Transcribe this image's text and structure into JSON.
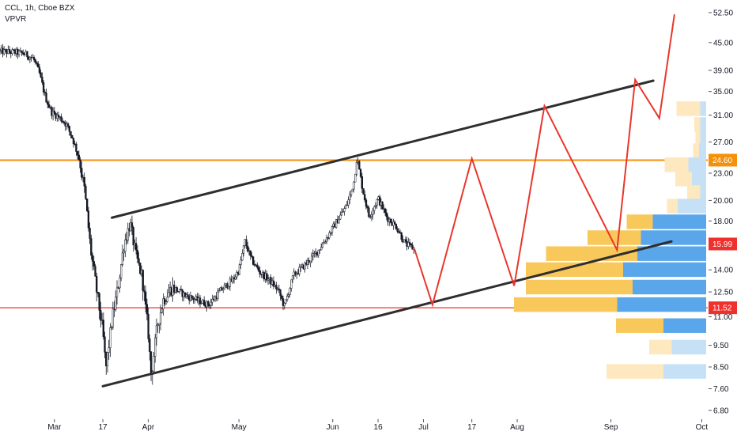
{
  "legend": {
    "symbol_line": "CCL, 1h, Cboe BZX",
    "indicator": "VPVR"
  },
  "chart_data": {
    "type": "candlestick",
    "y_axis": {
      "scale": "log",
      "tick_labels": [
        "52.50",
        "45.00",
        "39.00",
        "35.00",
        "31.00",
        "27.00",
        "24.60",
        "23.00",
        "20.00",
        "18.00",
        "15.99",
        "14.00",
        "12.50",
        "11.52",
        "11.00",
        "9.50",
        "8.50",
        "7.60",
        "6.80"
      ],
      "tick_values": [
        52.5,
        45.0,
        39.0,
        35.0,
        31.0,
        27.0,
        24.6,
        23.0,
        20.0,
        18.0,
        15.99,
        14.0,
        12.5,
        11.52,
        11.0,
        9.5,
        8.5,
        7.6,
        6.8
      ],
      "range": [
        6.5,
        56
      ]
    },
    "x_axis": {
      "tick_labels": [
        "Mar",
        "17",
        "Apr",
        "May",
        "Jun",
        "16",
        "Jul",
        "17",
        "Aug",
        "Sep",
        "Oct"
      ],
      "tick_dates": [
        "2020-03-01",
        "2020-03-17",
        "2020-04-01",
        "2020-05-01",
        "2020-06-01",
        "2020-06-16",
        "2020-07-01",
        "2020-07-17",
        "2020-08-01",
        "2020-09-01",
        "2020-10-01"
      ],
      "range": [
        "2020-02-12",
        "2020-10-03"
      ]
    },
    "price_path": [
      [
        "2020-02-12",
        43.0
      ],
      [
        "2020-02-17",
        42.8
      ],
      [
        "2020-02-20",
        42.5
      ],
      [
        "2020-02-23",
        41.5
      ],
      [
        "2020-02-25",
        38.5
      ],
      [
        "2020-02-27",
        34.0
      ],
      [
        "2020-02-29",
        31.5
      ],
      [
        "2020-03-03",
        30.5
      ],
      [
        "2020-03-05",
        29.5
      ],
      [
        "2020-03-07",
        27.5
      ],
      [
        "2020-03-09",
        25.0
      ],
      [
        "2020-03-11",
        21.0
      ],
      [
        "2020-03-13",
        15.5
      ],
      [
        "2020-03-15",
        12.5
      ],
      [
        "2020-03-17",
        10.2
      ],
      [
        "2020-03-18",
        8.4
      ],
      [
        "2020-03-20",
        10.8
      ],
      [
        "2020-03-22",
        12.8
      ],
      [
        "2020-03-24",
        16.0
      ],
      [
        "2020-03-26",
        17.8
      ],
      [
        "2020-03-28",
        15.0
      ],
      [
        "2020-03-30",
        13.5
      ],
      [
        "2020-04-01",
        10.2
      ],
      [
        "2020-04-02",
        8.1
      ],
      [
        "2020-04-04",
        10.5
      ],
      [
        "2020-04-06",
        12.0
      ],
      [
        "2020-04-09",
        12.8
      ],
      [
        "2020-04-13",
        12.3
      ],
      [
        "2020-04-17",
        12.0
      ],
      [
        "2020-04-21",
        11.7
      ],
      [
        "2020-04-25",
        12.6
      ],
      [
        "2020-04-29",
        13.3
      ],
      [
        "2020-05-01",
        14.0
      ],
      [
        "2020-05-03",
        16.2
      ],
      [
        "2020-05-05",
        14.8
      ],
      [
        "2020-05-08",
        13.8
      ],
      [
        "2020-05-11",
        13.3
      ],
      [
        "2020-05-14",
        12.6
      ],
      [
        "2020-05-16",
        11.6
      ],
      [
        "2020-05-19",
        13.6
      ],
      [
        "2020-05-23",
        14.4
      ],
      [
        "2020-05-27",
        15.4
      ],
      [
        "2020-05-30",
        16.5
      ],
      [
        "2020-06-02",
        17.8
      ],
      [
        "2020-06-05",
        19.2
      ],
      [
        "2020-06-06",
        19.8
      ],
      [
        "2020-06-08",
        22.0
      ],
      [
        "2020-06-09",
        25.0
      ],
      [
        "2020-06-11",
        21.0
      ],
      [
        "2020-06-13",
        18.4
      ],
      [
        "2020-06-16",
        20.2
      ],
      [
        "2020-06-19",
        18.3
      ],
      [
        "2020-06-22",
        17.5
      ],
      [
        "2020-06-25",
        16.0
      ],
      [
        "2020-06-28",
        15.6
      ]
    ],
    "projection": [
      [
        "2020-06-28",
        15.6
      ],
      [
        "2020-07-04",
        11.7
      ],
      [
        "2020-07-17",
        24.8
      ],
      [
        "2020-07-31",
        12.9
      ],
      [
        "2020-08-10",
        32.5
      ],
      [
        "2020-09-03",
        15.5
      ],
      [
        "2020-09-09",
        37.2
      ],
      [
        "2020-09-17",
        30.5
      ],
      [
        "2020-09-22",
        52.0
      ]
    ],
    "trend_lines": [
      {
        "name": "channel-top",
        "points": [
          [
            "2020-03-20",
            18.3
          ],
          [
            "2020-09-15",
            37.0
          ]
        ]
      },
      {
        "name": "channel-bottom",
        "points": [
          [
            "2020-03-17",
            7.7
          ],
          [
            "2020-09-21",
            16.2
          ]
        ]
      }
    ],
    "horizontal_lines": [
      {
        "name": "resistance-24-60",
        "price": 24.6,
        "label": "24.60",
        "color": "#f5900b"
      },
      {
        "name": "support-11-52",
        "price": 11.52,
        "label": "11.52",
        "color": "#f0302c"
      }
    ],
    "price_tags": [
      {
        "name": "last-price",
        "price": 15.99,
        "label": "15.99",
        "color": "#f0302c"
      }
    ],
    "volume_profile": [
      {
        "price": 32.0,
        "up": 0.2,
        "down": 0.05,
        "light": true
      },
      {
        "price": 29.5,
        "up": 0.05,
        "down": 0.05,
        "light": true
      },
      {
        "price": 27.5,
        "up": 0.04,
        "down": 0.05,
        "light": true
      },
      {
        "price": 25.8,
        "up": 0.05,
        "down": 0.06,
        "light": true
      },
      {
        "price": 24.0,
        "up": 0.2,
        "down": 0.15,
        "light": true
      },
      {
        "price": 22.3,
        "up": 0.14,
        "down": 0.12,
        "light": true
      },
      {
        "price": 20.8,
        "up": 0.11,
        "down": 0.05,
        "light": true
      },
      {
        "price": 19.4,
        "up": 0.09,
        "down": 0.24,
        "light": true
      },
      {
        "price": 17.9,
        "up": 0.22,
        "down": 0.45,
        "light": false
      },
      {
        "price": 16.5,
        "up": 0.45,
        "down": 0.55,
        "light": false
      },
      {
        "price": 15.2,
        "up": 0.77,
        "down": 0.58,
        "light": false
      },
      {
        "price": 14.0,
        "up": 0.82,
        "down": 0.7,
        "light": false
      },
      {
        "price": 12.8,
        "up": 0.9,
        "down": 0.62,
        "light": false
      },
      {
        "price": 11.7,
        "up": 0.87,
        "down": 0.75,
        "light": false
      },
      {
        "price": 10.5,
        "up": 0.4,
        "down": 0.36,
        "light": false
      },
      {
        "price": 9.4,
        "up": 0.19,
        "down": 0.29,
        "light": true
      },
      {
        "price": 8.3,
        "up": 0.48,
        "down": 0.36,
        "light": true
      }
    ],
    "colors": {
      "candle": "#131722",
      "projection": "#e8372c",
      "trend": "#2e2e2e",
      "profile_up": "#f9c85a",
      "profile_down": "#5aa6ea",
      "profile_up_light": "#fde8c0",
      "profile_down_light": "#c6e0f6"
    },
    "grid": false
  }
}
